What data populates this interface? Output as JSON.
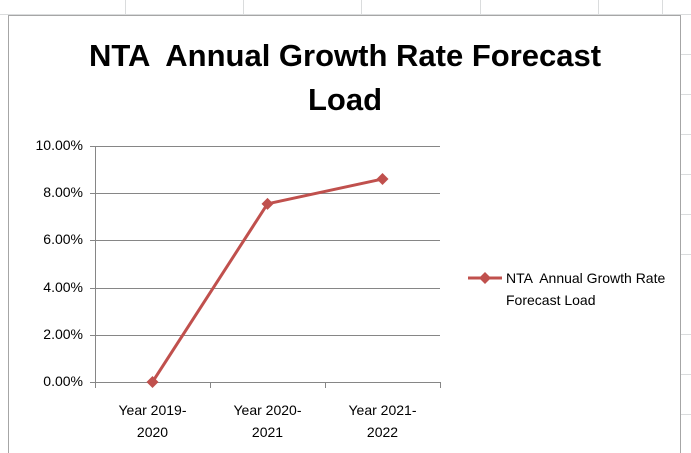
{
  "chart_data": {
    "type": "line",
    "title": "NTA  Annual Growth Rate Forecast Load",
    "categories": [
      "Year 2019-2020",
      "Year 2020-2021",
      "Year 2021-2022"
    ],
    "series": [
      {
        "name": "NTA  Annual Growth Rate Forecast Load",
        "color": "#c0504d",
        "values": [
          0,
          7.55,
          8.6
        ]
      }
    ],
    "ylim": [
      0,
      10
    ],
    "yticks": [
      {
        "value": 0,
        "label": "0.00%"
      },
      {
        "value": 2,
        "label": "2.00%"
      },
      {
        "value": 4,
        "label": "4.00%"
      },
      {
        "value": 6,
        "label": "6.00%"
      },
      {
        "value": 8,
        "label": "8.00%"
      },
      {
        "value": 10,
        "label": "10.00%"
      }
    ],
    "grid": true,
    "legend": "right"
  }
}
